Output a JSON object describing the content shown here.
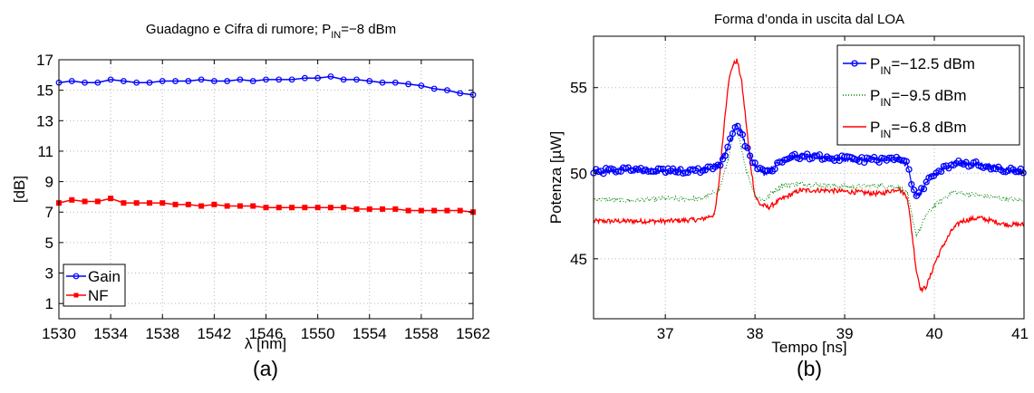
{
  "chart_data": [
    {
      "type": "line",
      "panel": "(a)",
      "title": "Guadagno e Cifra di rumore; P",
      "title_sub": "IN",
      "title_tail": "=−8 dBm",
      "xlabel": "λ [nm]",
      "ylabel": "[dB]",
      "xlim": [
        1530,
        1562
      ],
      "ylim": [
        0,
        17
      ],
      "xticks": [
        1530,
        1534,
        1538,
        1542,
        1546,
        1550,
        1554,
        1558,
        1562
      ],
      "yticks": [
        1,
        3,
        5,
        7,
        9,
        11,
        13,
        15,
        17
      ],
      "grid": true,
      "legend_position": "bottom-left",
      "x": [
        1530,
        1531,
        1532,
        1533,
        1534,
        1535,
        1536,
        1537,
        1538,
        1539,
        1540,
        1541,
        1542,
        1543,
        1544,
        1545,
        1546,
        1547,
        1548,
        1549,
        1550,
        1551,
        1552,
        1553,
        1554,
        1555,
        1556,
        1557,
        1558,
        1559,
        1560,
        1561,
        1562
      ],
      "series": [
        {
          "name": "Gain",
          "color": "#0000ff",
          "marker": "circle",
          "values": [
            15.5,
            15.6,
            15.5,
            15.5,
            15.7,
            15.6,
            15.5,
            15.5,
            15.6,
            15.6,
            15.6,
            15.7,
            15.6,
            15.6,
            15.7,
            15.6,
            15.7,
            15.7,
            15.7,
            15.8,
            15.8,
            15.9,
            15.7,
            15.7,
            15.6,
            15.5,
            15.5,
            15.4,
            15.3,
            15.1,
            15.0,
            14.8,
            14.7
          ]
        },
        {
          "name": "NF",
          "color": "#ff0000",
          "marker": "square",
          "values": [
            7.6,
            7.8,
            7.7,
            7.7,
            7.9,
            7.6,
            7.6,
            7.6,
            7.6,
            7.5,
            7.5,
            7.4,
            7.5,
            7.4,
            7.4,
            7.4,
            7.3,
            7.3,
            7.3,
            7.3,
            7.3,
            7.3,
            7.3,
            7.2,
            7.2,
            7.2,
            7.2,
            7.1,
            7.1,
            7.1,
            7.1,
            7.1,
            7.0
          ]
        }
      ]
    },
    {
      "type": "line",
      "panel": "(b)",
      "title": "Forma d’onda in uscita dal LOA",
      "xlabel": "Tempo [ns]",
      "ylabel": "Potenza [µW]",
      "xlim": [
        36.2,
        41.0
      ],
      "ylim": [
        41.5,
        58.0
      ],
      "xticks": [
        37,
        38,
        39,
        40,
        41
      ],
      "yticks": [
        45,
        50,
        55
      ],
      "grid": true,
      "legend_position": "top-right",
      "series": [
        {
          "name_pre": "P",
          "name_sub": "IN",
          "name_tail": "=−12.5 dBm",
          "color": "#0000ff",
          "marker": "circle",
          "x": [
            36.2,
            36.6,
            37.0,
            37.4,
            37.6,
            37.7,
            37.75,
            37.8,
            37.85,
            37.9,
            38.0,
            38.1,
            38.2,
            38.3,
            38.5,
            38.8,
            39.1,
            39.4,
            39.6,
            39.7,
            39.75,
            39.8,
            39.85,
            39.9,
            40.0,
            40.2,
            40.5,
            40.8,
            41.0
          ],
          "y": [
            50.1,
            50.2,
            50.1,
            50.2,
            50.5,
            51.5,
            52.3,
            52.8,
            52.4,
            51.5,
            50.5,
            50.0,
            50.3,
            50.8,
            51.0,
            50.9,
            50.8,
            50.8,
            50.8,
            50.5,
            49.4,
            48.6,
            48.9,
            49.4,
            49.9,
            50.6,
            50.5,
            50.2,
            50.1
          ]
        },
        {
          "name_pre": "P",
          "name_sub": "IN",
          "name_tail": "=−9.5 dBm",
          "color": "#008000",
          "marker": "dot",
          "x": [
            36.2,
            36.6,
            37.0,
            37.4,
            37.6,
            37.7,
            37.75,
            37.8,
            37.85,
            37.9,
            38.0,
            38.1,
            38.2,
            38.3,
            38.5,
            38.8,
            39.1,
            39.4,
            39.6,
            39.7,
            39.75,
            39.8,
            39.85,
            39.9,
            40.0,
            40.2,
            40.5,
            40.8,
            41.0
          ],
          "y": [
            48.5,
            48.4,
            48.5,
            48.5,
            49.0,
            50.8,
            52.0,
            52.3,
            51.5,
            50.2,
            48.7,
            48.4,
            48.9,
            49.3,
            49.4,
            49.3,
            49.2,
            49.3,
            49.2,
            48.8,
            47.5,
            46.4,
            46.8,
            47.5,
            48.1,
            48.9,
            48.7,
            48.5,
            48.4
          ]
        },
        {
          "name_pre": "P",
          "name_sub": "IN",
          "name_tail": "=−6.8 dBm",
          "color": "#ff0000",
          "marker": "none",
          "x": [
            36.2,
            36.6,
            37.0,
            37.4,
            37.55,
            37.6,
            37.65,
            37.7,
            37.75,
            37.8,
            37.85,
            37.9,
            37.95,
            38.0,
            38.05,
            38.15,
            38.3,
            38.5,
            38.8,
            39.1,
            39.4,
            39.6,
            39.7,
            39.75,
            39.8,
            39.85,
            39.9,
            39.95,
            40.0,
            40.1,
            40.2,
            40.3,
            40.5,
            40.8,
            41.0
          ],
          "y": [
            47.2,
            47.2,
            47.2,
            47.3,
            47.6,
            49.5,
            52.5,
            55.2,
            56.3,
            56.6,
            55.4,
            53.0,
            50.5,
            48.7,
            48.2,
            48.0,
            48.5,
            49.0,
            49.0,
            48.9,
            48.8,
            49.1,
            48.6,
            46.5,
            44.3,
            43.2,
            43.3,
            43.9,
            44.7,
            45.8,
            46.7,
            47.2,
            47.4,
            47.0,
            47.0
          ]
        }
      ]
    }
  ]
}
